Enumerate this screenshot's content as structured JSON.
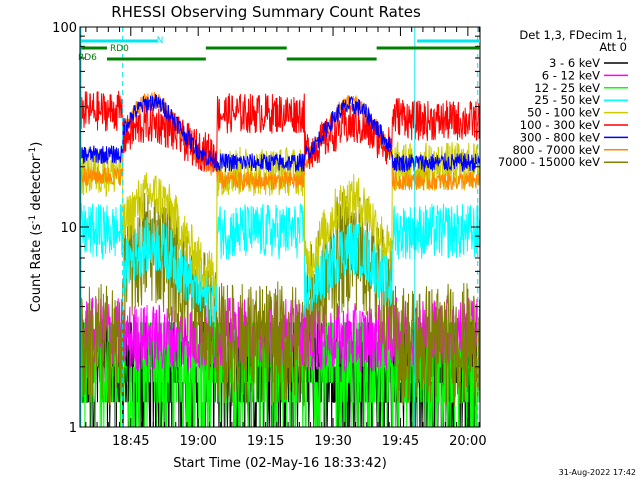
{
  "chart_data": {
    "type": "line",
    "title": "RHESSI Observing Summary Count Rates",
    "xlabel": "Start Time (02-May-16 18:33:42)",
    "ylabel": "Count Rate (s",
    "ylabel_sup": "-1",
    "ylabel_mid": " detector",
    "ylabel_end": ")",
    "yscale": "log",
    "ylim": [
      1,
      100
    ],
    "y_ticks": [
      {
        "value": 1,
        "label": "1"
      },
      {
        "value": 10,
        "label": "10"
      },
      {
        "value": 100,
        "label": "100"
      }
    ],
    "xlim_min": [
      0,
      89
    ],
    "x_ticks": [
      {
        "min": 11.3,
        "label": "18:45"
      },
      {
        "min": 26.3,
        "label": "19:00"
      },
      {
        "min": 41.3,
        "label": "19:15"
      },
      {
        "min": 56.3,
        "label": "19:30"
      },
      {
        "min": 71.3,
        "label": "19:45"
      },
      {
        "min": 86.3,
        "label": "20:00"
      }
    ],
    "legend_title": [
      "Det 1,3, FDecim 1,",
      "Att 0"
    ],
    "series": [
      {
        "name": "3 - 6 keV",
        "color": "#000000"
      },
      {
        "name": "6 - 12 keV",
        "color": "#ff00ff"
      },
      {
        "name": "12 - 25 keV",
        "color": "#00ff00"
      },
      {
        "name": "25 - 50 keV",
        "color": "#00ffff"
      },
      {
        "name": "50 - 100 keV",
        "color": "#cccc00"
      },
      {
        "name": "100 - 300 keV",
        "color": "#ff0000"
      },
      {
        "name": "300 - 800 keV",
        "color": "#0000ff"
      },
      {
        "name": "800 - 7000 keV",
        "color": "#ff8800"
      },
      {
        "name": "7000 - 15000 keV",
        "color": "#808000"
      }
    ],
    "flags": [
      {
        "label": "N",
        "color": "#00e5ee"
      },
      {
        "label": "RD0",
        "color": "#008000"
      },
      {
        "label": "RD6",
        "color": "#008000"
      }
    ],
    "timestamp": "31-Aug-2022 17:42"
  }
}
